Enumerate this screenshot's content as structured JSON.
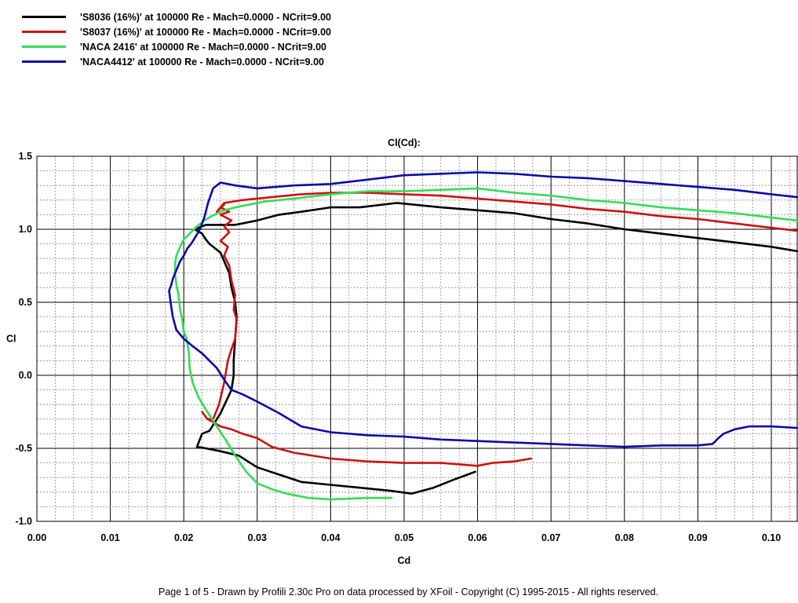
{
  "legend": [
    {
      "label": "'S8036 (16%)' at 100000 Re - Mach=0.0000 - NCrit=9.00",
      "color": "#000000"
    },
    {
      "label": "'S8037 (16%)' at 100000 Re - Mach=0.0000 - NCrit=9.00",
      "color": "#cc1111"
    },
    {
      "label": "'NACA 2416' at 100000 Re - Mach=0.0000 - NCrit=9.00",
      "color": "#33dd55"
    },
    {
      "label": "'NACA4412' at 100000 Re - Mach=0.0000 - NCrit=9.00",
      "color": "#0a0aa8"
    }
  ],
  "footer": "Page 1 of 5   -   Drawn by Profili 2.30c Pro on data processed by  XFoil - Copyright (C) 1995-2015 - All rights reserved.",
  "chart_data": {
    "type": "line",
    "title": "Cl(Cd):",
    "xlabel": "Cd",
    "ylabel": "Cl",
    "xlim": [
      0.0,
      0.1
    ],
    "ylim": [
      -1.0,
      1.5
    ],
    "grid": true,
    "legend_position": "top-left",
    "x_ticks": [
      "0.00",
      "0.01",
      "0.02",
      "0.03",
      "0.04",
      "0.05",
      "0.06",
      "0.07",
      "0.08",
      "0.09",
      "0.10"
    ],
    "y_ticks": [
      "1.5",
      "1.0",
      "0.5",
      "Cl",
      "0.0",
      "-0.5",
      "-1.0"
    ],
    "series": [
      {
        "name": "'S8036 (16%)' at 100000 Re - Mach=0.0000 - NCrit=9.00",
        "color": "#000000",
        "x": [
          0.0597,
          0.057,
          0.054,
          0.051,
          0.048,
          0.044,
          0.04,
          0.036,
          0.033,
          0.03,
          0.0275,
          0.025,
          0.023,
          0.0218,
          0.0225,
          0.0235,
          0.025,
          0.0265,
          0.0268,
          0.0268,
          0.027,
          0.0272,
          0.027,
          0.0265,
          0.0262,
          0.025,
          0.0235,
          0.023,
          0.0225,
          0.0215,
          0.023,
          0.0245,
          0.027,
          0.03,
          0.033,
          0.036,
          0.04,
          0.044,
          0.049,
          0.055,
          0.06,
          0.065,
          0.07,
          0.075,
          0.08,
          0.085,
          0.09,
          0.095,
          0.1,
          0.1035
        ],
        "y": [
          -0.66,
          -0.71,
          -0.77,
          -0.81,
          -0.79,
          -0.77,
          -0.75,
          -0.73,
          -0.68,
          -0.63,
          -0.55,
          -0.52,
          -0.5,
          -0.49,
          -0.4,
          -0.38,
          -0.26,
          -0.1,
          0.0,
          0.1,
          0.25,
          0.4,
          0.5,
          0.6,
          0.7,
          0.84,
          0.9,
          0.93,
          0.97,
          1.0,
          1.03,
          1.03,
          1.03,
          1.06,
          1.1,
          1.12,
          1.15,
          1.15,
          1.18,
          1.15,
          1.13,
          1.11,
          1.07,
          1.04,
          1.0,
          0.97,
          0.94,
          0.91,
          0.88,
          0.85
        ]
      },
      {
        "name": "'S8037 (16%)' at 100000 Re - Mach=0.0000 - NCrit=9.00",
        "color": "#cc1111",
        "x": [
          0.0673,
          0.065,
          0.062,
          0.06,
          0.055,
          0.05,
          0.045,
          0.04,
          0.035,
          0.032,
          0.03,
          0.028,
          0.0265,
          0.025,
          0.024,
          0.0232,
          0.0225,
          0.0232,
          0.024,
          0.0248,
          0.0255,
          0.026,
          0.0265,
          0.027,
          0.0272,
          0.0268,
          0.027,
          0.0265,
          0.0262,
          0.0255,
          0.026,
          0.025,
          0.0262,
          0.0255,
          0.0265,
          0.025,
          0.0262,
          0.025,
          0.0255,
          0.0245,
          0.0255,
          0.028,
          0.032,
          0.036,
          0.04,
          0.045,
          0.05,
          0.055,
          0.06,
          0.065,
          0.07,
          0.075,
          0.08,
          0.085,
          0.09,
          0.095,
          0.1,
          0.1035
        ],
        "y": [
          -0.57,
          -0.59,
          -0.6,
          -0.62,
          -0.6,
          -0.6,
          -0.59,
          -0.57,
          -0.53,
          -0.49,
          -0.43,
          -0.4,
          -0.37,
          -0.35,
          -0.32,
          -0.3,
          -0.25,
          -0.3,
          -0.3,
          -0.2,
          -0.05,
          0.1,
          0.18,
          0.25,
          0.38,
          0.45,
          0.55,
          0.65,
          0.75,
          0.82,
          0.88,
          0.92,
          0.98,
          1.02,
          1.06,
          1.1,
          1.12,
          1.15,
          1.17,
          1.12,
          1.18,
          1.2,
          1.22,
          1.24,
          1.25,
          1.25,
          1.24,
          1.23,
          1.21,
          1.19,
          1.17,
          1.14,
          1.12,
          1.09,
          1.07,
          1.04,
          1.01,
          0.99
        ]
      },
      {
        "name": "'NACA 2416' at 100000 Re - Mach=0.0000 - NCrit=9.00",
        "color": "#33dd55",
        "x": [
          0.0483,
          0.045,
          0.04,
          0.037,
          0.034,
          0.032,
          0.03,
          0.0285,
          0.027,
          0.0258,
          0.0245,
          0.0232,
          0.022,
          0.0212,
          0.0208,
          0.0207,
          0.0204,
          0.02,
          0.0198,
          0.0195,
          0.0193,
          0.019,
          0.0188,
          0.0188,
          0.019,
          0.0195,
          0.02,
          0.021,
          0.0218,
          0.0228,
          0.0238,
          0.025,
          0.0262,
          0.028,
          0.031,
          0.035,
          0.04,
          0.045,
          0.05,
          0.055,
          0.06,
          0.065,
          0.07,
          0.075,
          0.08,
          0.085,
          0.09,
          0.095,
          0.1,
          0.1035
        ],
        "y": [
          -0.84,
          -0.84,
          -0.85,
          -0.84,
          -0.81,
          -0.78,
          -0.74,
          -0.66,
          -0.55,
          -0.45,
          -0.35,
          -0.25,
          -0.15,
          -0.05,
          0.05,
          0.15,
          0.25,
          0.3,
          0.38,
          0.45,
          0.55,
          0.62,
          0.7,
          0.76,
          0.82,
          0.88,
          0.93,
          0.98,
          1.02,
          1.06,
          1.09,
          1.12,
          1.14,
          1.16,
          1.19,
          1.21,
          1.24,
          1.26,
          1.26,
          1.27,
          1.28,
          1.25,
          1.23,
          1.2,
          1.18,
          1.15,
          1.13,
          1.11,
          1.08,
          1.06
        ]
      },
      {
        "name": "'NACA4412' at 100000 Re - Mach=0.0000 - NCrit=9.00",
        "color": "#0a0aa8",
        "x": [
          0.1035,
          0.1,
          0.097,
          0.095,
          0.0935,
          0.0928,
          0.092,
          0.09,
          0.085,
          0.08,
          0.075,
          0.07,
          0.065,
          0.06,
          0.055,
          0.05,
          0.045,
          0.04,
          0.036,
          0.033,
          0.03,
          0.028,
          0.0265,
          0.0255,
          0.0245,
          0.0235,
          0.0225,
          0.0212,
          0.02,
          0.019,
          0.0185,
          0.0182,
          0.018,
          0.0183,
          0.0185,
          0.019,
          0.0195,
          0.02,
          0.0205,
          0.021,
          0.0215,
          0.0222,
          0.0228,
          0.0233,
          0.024,
          0.025,
          0.027,
          0.03,
          0.035,
          0.04,
          0.045,
          0.05,
          0.055,
          0.06,
          0.065,
          0.07,
          0.075,
          0.08,
          0.085,
          0.09,
          0.095,
          0.1,
          0.1035
        ],
        "y": [
          -0.36,
          -0.35,
          -0.35,
          -0.37,
          -0.4,
          -0.43,
          -0.47,
          -0.48,
          -0.48,
          -0.49,
          -0.48,
          -0.47,
          -0.46,
          -0.45,
          -0.44,
          -0.42,
          -0.41,
          -0.39,
          -0.35,
          -0.26,
          -0.18,
          -0.13,
          -0.1,
          -0.03,
          0.05,
          0.1,
          0.15,
          0.2,
          0.25,
          0.31,
          0.4,
          0.5,
          0.58,
          0.62,
          0.66,
          0.72,
          0.78,
          0.82,
          0.87,
          0.9,
          0.94,
          1.0,
          1.08,
          1.18,
          1.28,
          1.32,
          1.3,
          1.28,
          1.3,
          1.31,
          1.34,
          1.37,
          1.38,
          1.39,
          1.38,
          1.36,
          1.35,
          1.33,
          1.31,
          1.29,
          1.27,
          1.24,
          1.22
        ]
      }
    ]
  }
}
